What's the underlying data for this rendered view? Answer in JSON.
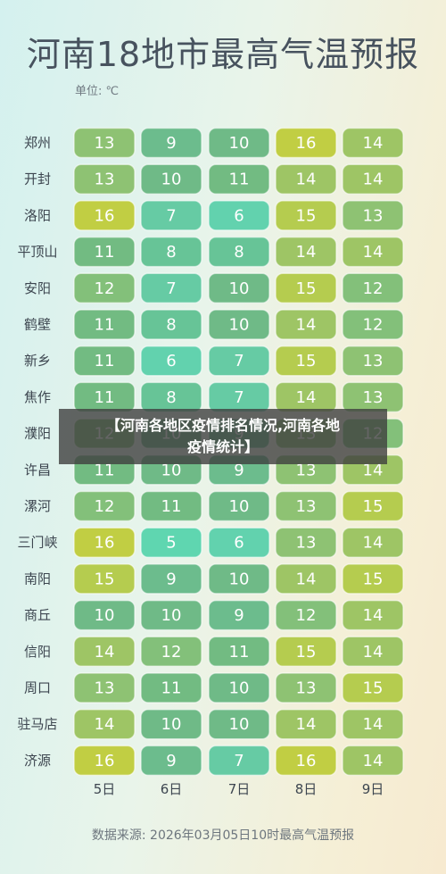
{
  "title": "河南18地市最高气温预报",
  "unit_label": "单位: ℃",
  "source_text": "数据来源: 2026年03月05日10时最高气温预报",
  "overlay_banner": {
    "line1": "【河南各地区疫情排名情况,河南各地",
    "line2": "疫情统计】"
  },
  "colors": {
    "c5": "#5fd6b0",
    "c6": "#62d2ae",
    "c7": "#66cba4",
    "c8": "#67c497",
    "c9": "#6cbc8d",
    "c10": "#6fba87",
    "c11": "#72bb82",
    "c12": "#83c07a",
    "c13": "#8ec273",
    "c14": "#9ec565",
    "c15": "#b5cc4f",
    "c16": "#c1ce43"
  },
  "chart_data": {
    "type": "heatmap",
    "title": "河南18地市最高气温预报",
    "unit": "℃",
    "x": [
      "5日",
      "6日",
      "7日",
      "8日",
      "9日"
    ],
    "y": [
      "郑州",
      "开封",
      "洛阳",
      "平顶山",
      "安阳",
      "鹤壁",
      "新乡",
      "焦作",
      "濮阳",
      "许昌",
      "漯河",
      "三门峡",
      "南阳",
      "商丘",
      "信阳",
      "周口",
      "驻马店",
      "济源"
    ],
    "values": [
      [
        13,
        9,
        10,
        16,
        14
      ],
      [
        13,
        10,
        11,
        14,
        14
      ],
      [
        16,
        7,
        6,
        15,
        13
      ],
      [
        11,
        8,
        8,
        14,
        14
      ],
      [
        12,
        7,
        10,
        15,
        12
      ],
      [
        11,
        8,
        10,
        14,
        12
      ],
      [
        11,
        6,
        7,
        15,
        13
      ],
      [
        11,
        8,
        7,
        14,
        13
      ],
      [
        12,
        10,
        9,
        13,
        12
      ],
      [
        11,
        10,
        9,
        13,
        14
      ],
      [
        12,
        11,
        10,
        13,
        15
      ],
      [
        16,
        5,
        6,
        13,
        14
      ],
      [
        15,
        9,
        10,
        14,
        15
      ],
      [
        10,
        10,
        9,
        12,
        14
      ],
      [
        14,
        12,
        11,
        15,
        14
      ],
      [
        13,
        11,
        10,
        13,
        15
      ],
      [
        14,
        10,
        10,
        14,
        14
      ],
      [
        16,
        9,
        7,
        16,
        14
      ]
    ]
  }
}
